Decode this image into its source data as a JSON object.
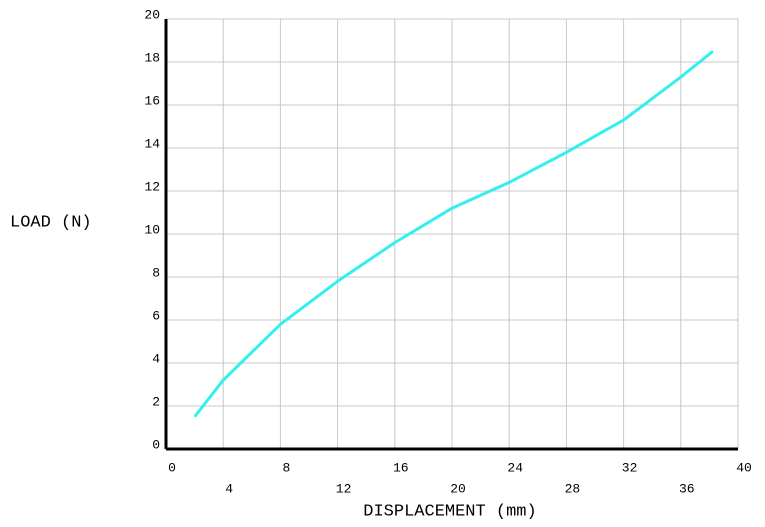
{
  "chart_data": {
    "type": "line",
    "x_label": "DISPLACEMENT (mm)",
    "y_label": "LOAD (N)",
    "x": [
      2,
      4,
      8,
      12,
      16,
      20,
      24,
      28,
      32,
      36,
      38.25
    ],
    "series": [
      {
        "color": "#33f0f0",
        "values": [
          1.5,
          3.2,
          5.8,
          7.8,
          9.6,
          11.2,
          12.4,
          13.8,
          15.3,
          17.3,
          18.5
        ]
      }
    ],
    "xlim": [
      0,
      40
    ],
    "xticks": [
      0,
      4,
      8,
      12,
      16,
      20,
      24,
      28,
      32,
      36,
      40
    ],
    "ylim": [
      0,
      20
    ],
    "yticks": [
      0,
      2,
      4,
      6,
      8,
      10,
      12,
      14,
      16,
      18,
      20
    ],
    "grid": true
  }
}
